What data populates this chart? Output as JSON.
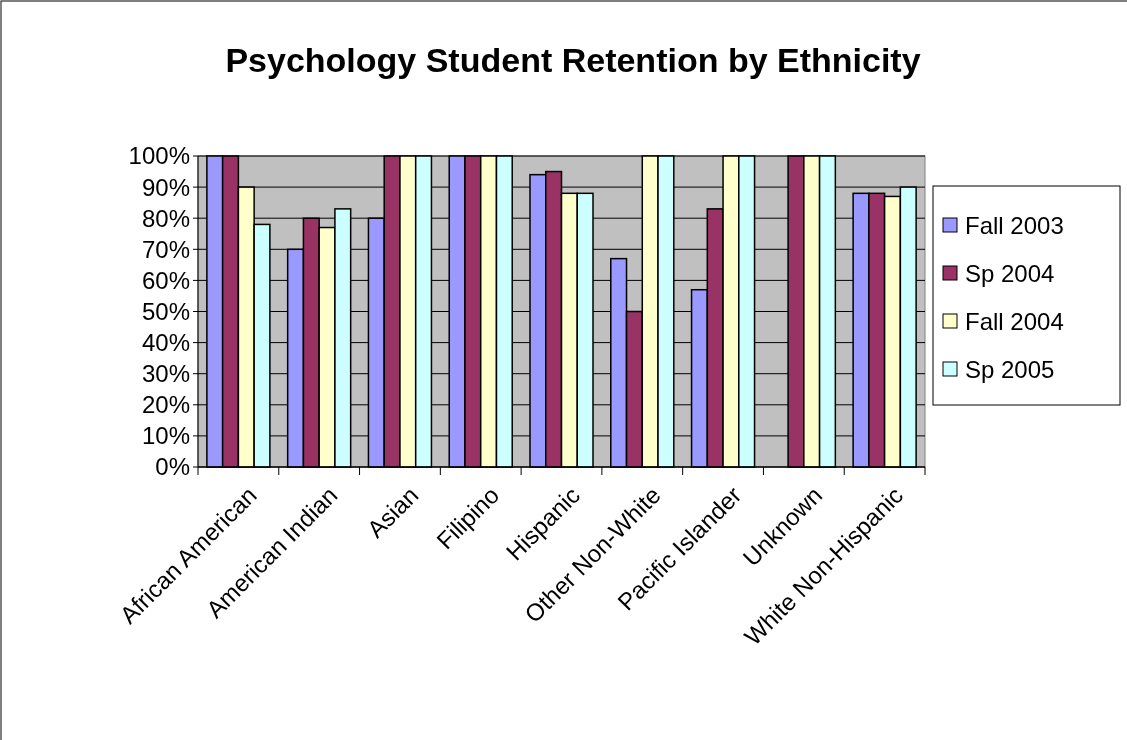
{
  "chart_data": {
    "type": "bar",
    "title": "Psychology  Student Retention by Ethnicity",
    "categories": [
      "African American",
      "American Indian",
      "Asian",
      "Filipino",
      "Hispanic",
      "Other Non-White",
      "Pacific Islander",
      "Unknown",
      "White Non-Hispanic"
    ],
    "series": [
      {
        "name": "Fall 2003",
        "color": "#9999ff",
        "values": [
          100,
          70,
          80,
          100,
          94,
          67,
          57,
          null,
          88
        ]
      },
      {
        "name": "Sp 2004",
        "color": "#993366",
        "values": [
          100,
          80,
          100,
          100,
          95,
          50,
          83,
          100,
          88
        ]
      },
      {
        "name": "Fall 2004",
        "color": "#ffffcc",
        "values": [
          90,
          77,
          100,
          100,
          88,
          100,
          100,
          100,
          87
        ]
      },
      {
        "name": "Sp 2005",
        "color": "#ccffff",
        "values": [
          78,
          83,
          100,
          100,
          88,
          100,
          100,
          100,
          90
        ]
      }
    ],
    "ylim": [
      0,
      100
    ],
    "yticks": [
      {
        "value": 0,
        "label": "0%"
      },
      {
        "value": 10,
        "label": "10%"
      },
      {
        "value": 20,
        "label": "20%"
      },
      {
        "value": 30,
        "label": "30%"
      },
      {
        "value": 40,
        "label": "40%"
      },
      {
        "value": 50,
        "label": "50%"
      },
      {
        "value": 60,
        "label": "60%"
      },
      {
        "value": 70,
        "label": "70%"
      },
      {
        "value": 80,
        "label": "80%"
      },
      {
        "value": 90,
        "label": "90%"
      },
      {
        "value": 100,
        "label": "100%"
      }
    ],
    "grid": "y",
    "legend": "right"
  }
}
